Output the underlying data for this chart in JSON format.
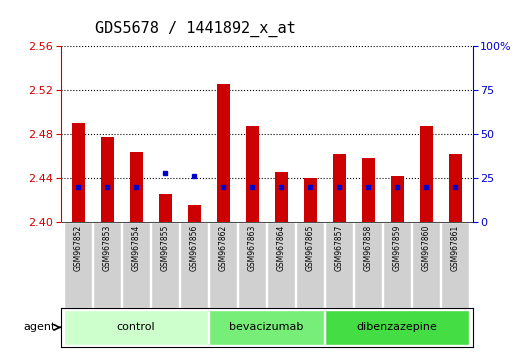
{
  "title": "GDS5678 / 1441892_x_at",
  "samples": [
    "GSM967852",
    "GSM967853",
    "GSM967854",
    "GSM967855",
    "GSM967856",
    "GSM967862",
    "GSM967863",
    "GSM967864",
    "GSM967865",
    "GSM967857",
    "GSM967858",
    "GSM967859",
    "GSM967860",
    "GSM967861"
  ],
  "transformed_count": [
    2.49,
    2.477,
    2.464,
    2.425,
    2.415,
    2.525,
    2.487,
    2.445,
    2.44,
    2.462,
    2.458,
    2.442,
    2.487,
    2.462
  ],
  "percentile_rank": [
    20,
    20,
    20,
    28,
    26,
    20,
    20,
    20,
    20,
    20,
    20,
    20,
    20,
    20
  ],
  "ylim_left": [
    2.4,
    2.56
  ],
  "ylim_right": [
    0,
    100
  ],
  "yticks_left": [
    2.4,
    2.44,
    2.48,
    2.52,
    2.56
  ],
  "yticks_right": [
    0,
    25,
    50,
    75,
    100
  ],
  "groups": [
    {
      "name": "control",
      "indices": [
        0,
        1,
        2,
        3,
        4
      ],
      "color": "#ccffcc"
    },
    {
      "name": "bevacizumab",
      "indices": [
        5,
        6,
        7,
        8
      ],
      "color": "#77ee77"
    },
    {
      "name": "dibenzazepine",
      "indices": [
        9,
        10,
        11,
        12,
        13
      ],
      "color": "#44dd44"
    }
  ],
  "bar_color": "#cc0000",
  "dot_color": "#0000cc",
  "bar_width": 0.45,
  "baseline": 2.4,
  "agent_label": "agent",
  "sample_box_color": "#d0d0d0",
  "plot_bg": "#ffffff",
  "left_tick_color": "#cc0000",
  "right_tick_color": "#0000cc",
  "title_fontsize": 11
}
